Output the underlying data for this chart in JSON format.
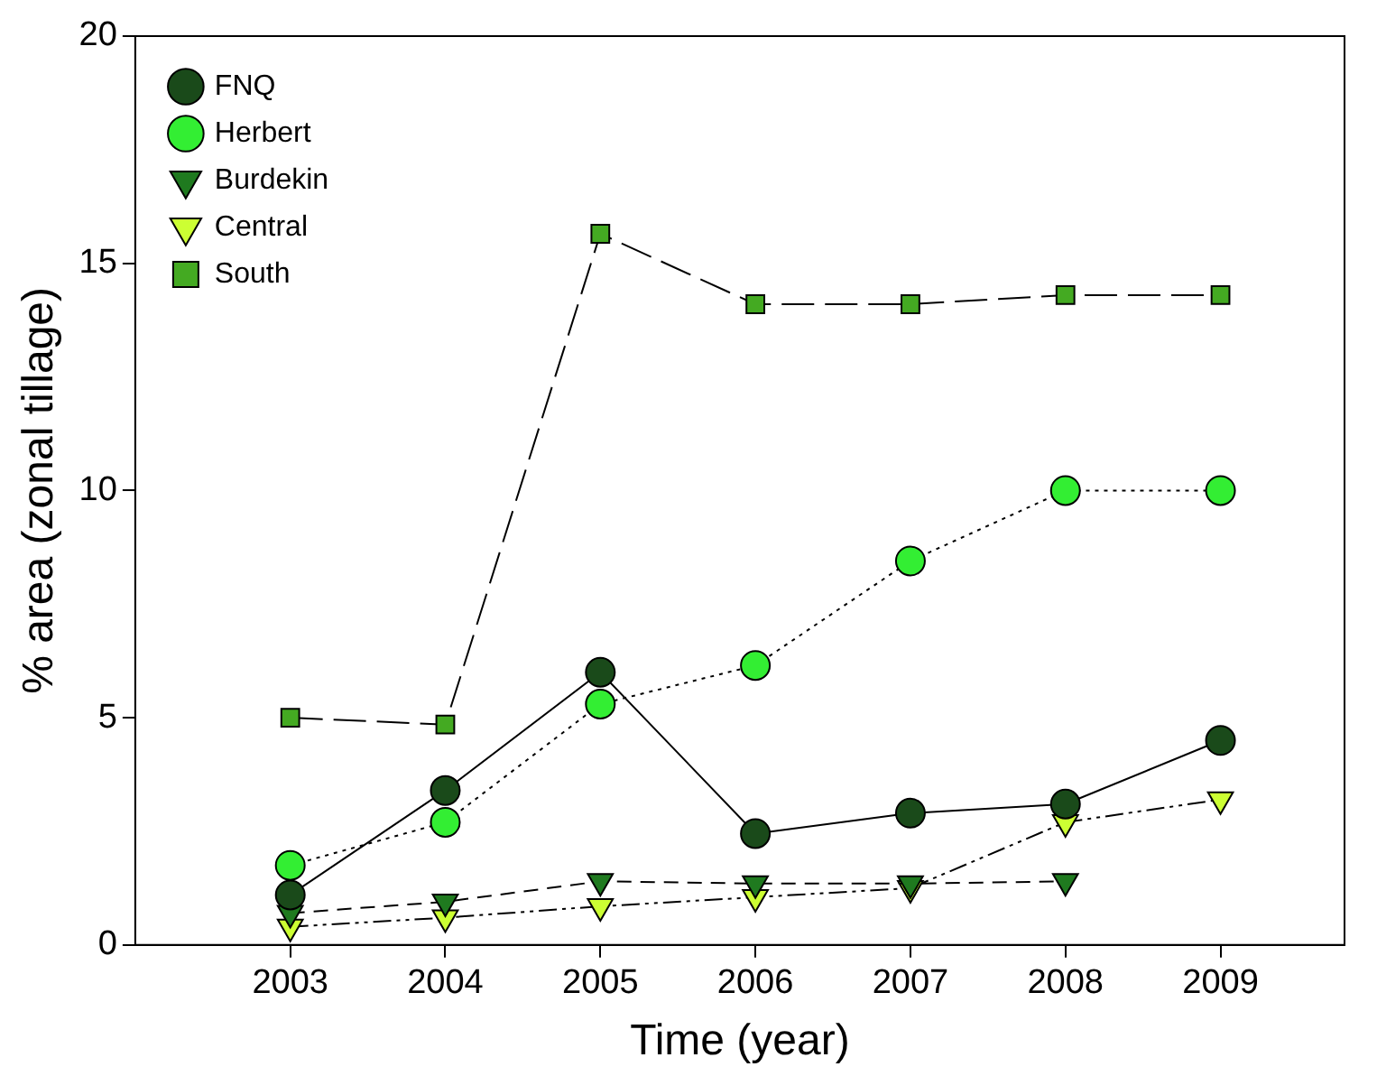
{
  "chart_data": {
    "type": "line",
    "xlabel": "Time (year)",
    "ylabel": "% area (zonal tillage)",
    "x": [
      2003,
      2004,
      2005,
      2006,
      2007,
      2008,
      2009
    ],
    "xlim": [
      2002,
      2009.8
    ],
    "xticks": [
      2003,
      2004,
      2005,
      2006,
      2007,
      2008,
      2009
    ],
    "ylim": [
      0,
      20
    ],
    "yticks": [
      0,
      5,
      10,
      15,
      20
    ],
    "grid": false,
    "legend": "top left",
    "series": [
      {
        "name": "FNQ",
        "color": "#1a4a1a",
        "marker": "circle",
        "line_style": "solid",
        "values": [
          1.1,
          3.4,
          6.0,
          2.45,
          2.9,
          3.1,
          4.5
        ]
      },
      {
        "name": "Herbert",
        "color": "#33ee33",
        "marker": "circle",
        "line_style": "dotted",
        "values": [
          1.75,
          2.7,
          5.3,
          6.15,
          8.45,
          10.0,
          10.0
        ]
      },
      {
        "name": "Burdekin",
        "color": "#1f7a1f",
        "marker": "triangle",
        "line_style": "dashed",
        "values": [
          0.7,
          0.95,
          1.4,
          1.35,
          1.35,
          1.4,
          null
        ]
      },
      {
        "name": "Central",
        "color": "#ccff33",
        "marker": "triangle",
        "line_style": "dashdot",
        "values": [
          0.4,
          0.6,
          0.85,
          1.05,
          1.25,
          2.7,
          3.2
        ]
      },
      {
        "name": "South",
        "color": "#44aa22",
        "marker": "square",
        "line_style": "longdash",
        "values": [
          5.0,
          4.85,
          15.65,
          14.1,
          14.1,
          14.3,
          14.3
        ]
      }
    ]
  }
}
